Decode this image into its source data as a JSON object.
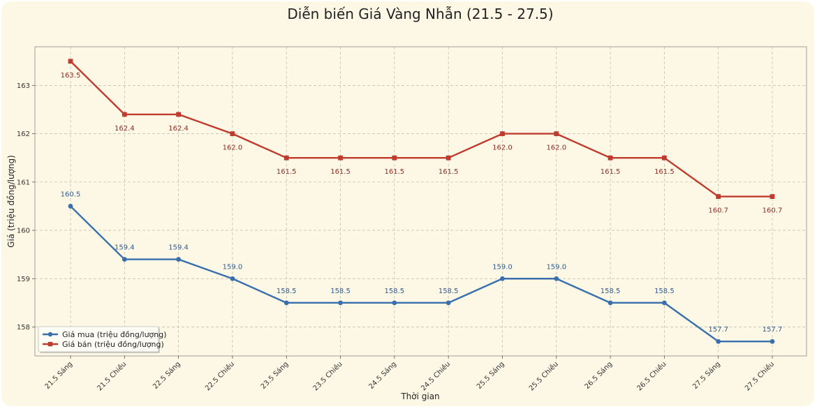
{
  "chart_data": {
    "type": "line",
    "title": "Diễn biến Giá Vàng Nhẫn (21.5 - 27.5)",
    "xlabel": "Thời gian",
    "ylabel": "Giá (triệu đồng/lượng)",
    "categories": [
      "21.5 Sáng",
      "21.5 Chiều",
      "22.5 Sáng",
      "22.5 Chiều",
      "23.5 Sáng",
      "23.5 Chiều",
      "24.5 Sáng",
      "24.5 Chiều",
      "25.5 Sáng",
      "25.5 Chiều",
      "26.5 Sáng",
      "26.5 Chiều",
      "27.5 Sáng",
      "27.5 Chiều"
    ],
    "ylim": [
      157.4,
      163.8
    ],
    "yticks": [
      158,
      159,
      160,
      161,
      162,
      163
    ],
    "grid": true,
    "legend_position": "bottom-left",
    "series": [
      {
        "name": "Giá mua (triệu đồng/lượng)",
        "color": "#3a6fad",
        "marker": "circle",
        "label_position": "above",
        "values": [
          160.5,
          159.4,
          159.4,
          159.0,
          158.5,
          158.5,
          158.5,
          158.5,
          159.0,
          159.0,
          158.5,
          158.5,
          157.7,
          157.7
        ],
        "labels": [
          "160.5",
          "159.4",
          "159.4",
          "159.0",
          "158.5",
          "158.5",
          "158.5",
          "158.5",
          "159.0",
          "159.0",
          "158.5",
          "158.5",
          "157.7",
          "157.7"
        ]
      },
      {
        "name": "Giá bán (triệu đồng/lượng)",
        "color": "#c03a2e",
        "marker": "square",
        "label_position": "below",
        "values": [
          163.5,
          162.4,
          162.4,
          162.0,
          161.5,
          161.5,
          161.5,
          161.5,
          162.0,
          162.0,
          161.5,
          161.5,
          160.7,
          160.7
        ],
        "labels": [
          "163.5",
          "162.4",
          "162.4",
          "162.0",
          "161.5",
          "161.5",
          "161.5",
          "161.5",
          "162.0",
          "162.0",
          "161.5",
          "161.5",
          "160.7",
          "160.7"
        ]
      }
    ]
  }
}
